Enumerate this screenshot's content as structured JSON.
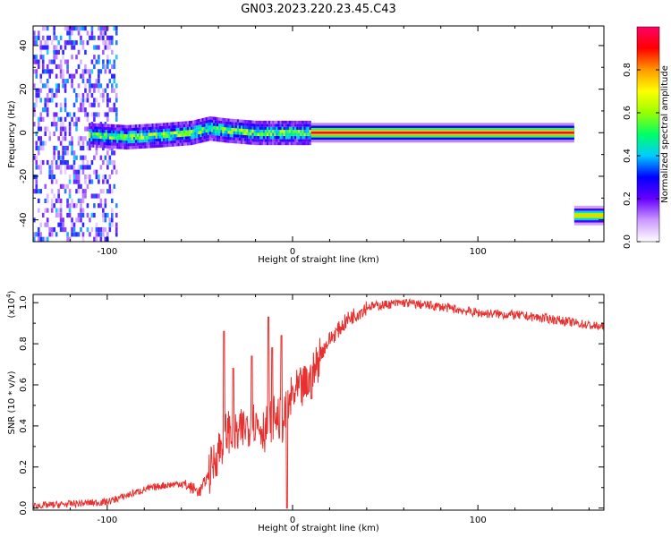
{
  "chart_data": [
    {
      "panel": "spectrogram",
      "type": "heatmap",
      "title": "GN03.2023.220.23.45.C43",
      "xlabel": "Height of straight line (km)",
      "ylabel": "Frequency (Hz)",
      "xlim": [
        -140,
        168
      ],
      "ylim": [
        -50,
        49
      ],
      "xticks": [
        -100,
        0,
        100
      ],
      "yticks": [
        -40,
        -20,
        0,
        20,
        40
      ],
      "x_tick_labels": [
        "-100",
        "0",
        "100"
      ],
      "y_tick_labels": [
        "-40",
        "-20",
        "0",
        "20",
        "40"
      ],
      "colorbar": {
        "label": "Normalized spectral amplitude",
        "range": [
          0,
          1
        ],
        "ticks": [
          0.0,
          0.2,
          0.4,
          0.6,
          0.8
        ],
        "tick_labels": [
          "0.0",
          "0.2",
          "0.4",
          "0.6",
          "0.8"
        ],
        "colors": [
          "#ffffff",
          "#cc99ff",
          "#6600ff",
          "#0000ff",
          "#00ccff",
          "#00ff66",
          "#99ff00",
          "#ffff00",
          "#ff9900",
          "#ff0000",
          "#ff0066"
        ]
      },
      "features": [
        {
          "kind": "noise",
          "x_range": [
            -140,
            -95
          ],
          "y_range": [
            -50,
            49
          ],
          "level": 0.25
        },
        {
          "kind": "wandering_line",
          "x_range": [
            -110,
            10
          ],
          "y": [
            [
              -110,
              -1
            ],
            [
              -90,
              -2
            ],
            [
              -70,
              -1
            ],
            [
              -55,
              0
            ],
            [
              -45,
              2
            ],
            [
              -35,
              1
            ],
            [
              -20,
              0
            ],
            [
              -5,
              0
            ],
            [
              10,
              0
            ]
          ],
          "level": 0.55
        },
        {
          "kind": "steady_line",
          "x_range": [
            10,
            152
          ],
          "y": 0,
          "level": 0.95
        },
        {
          "kind": "steady_line",
          "x_range": [
            152,
            168
          ],
          "y": -38,
          "level": 0.75
        }
      ]
    },
    {
      "panel": "snr",
      "type": "line",
      "title": "",
      "xlabel": "Height of straight line (km)",
      "ylabel": "SNR (10 * v/v)",
      "multiplier_label": "(x10",
      "multiplier_exponent": "4",
      "multiplier_close": ")",
      "xlim": [
        -140,
        168
      ],
      "ylim": [
        -0.01,
        1.04
      ],
      "xticks": [
        -100,
        0,
        100
      ],
      "yticks": [
        0.0,
        0.2,
        0.4,
        0.6,
        0.8,
        1.0
      ],
      "x_tick_labels": [
        "-100",
        "0",
        "100"
      ],
      "y_tick_labels": [
        "0.0",
        "0.2",
        "0.4",
        "0.6",
        "0.8",
        "1.0"
      ],
      "grid": false,
      "series": [
        {
          "color": "#e8312f",
          "x": [
            -140,
            -120,
            -100,
            -90,
            -80,
            -70,
            -60,
            -55,
            -50,
            -45,
            -40,
            -35,
            -30,
            -25,
            -20,
            -15,
            -10,
            -5,
            0,
            5,
            10,
            15,
            20,
            30,
            40,
            60,
            80,
            100,
            120,
            140,
            160,
            168
          ],
          "y": [
            0.01,
            0.02,
            0.03,
            0.06,
            0.09,
            0.11,
            0.12,
            0.1,
            0.08,
            0.17,
            0.28,
            0.38,
            0.35,
            0.4,
            0.42,
            0.38,
            0.45,
            0.42,
            0.55,
            0.58,
            0.62,
            0.75,
            0.82,
            0.92,
            0.98,
            1.0,
            0.98,
            0.95,
            0.94,
            0.92,
            0.89,
            0.88
          ],
          "noise_spikes": [
            {
              "x": -37,
              "y": 0.86
            },
            {
              "x": -32,
              "y": 0.68
            },
            {
              "x": -22,
              "y": 0.74
            },
            {
              "x": -13,
              "y": 0.93
            },
            {
              "x": -11,
              "y": 0.78
            },
            {
              "x": -6,
              "y": 0.84
            },
            {
              "x": -3,
              "y": 0.0
            }
          ]
        }
      ]
    }
  ]
}
